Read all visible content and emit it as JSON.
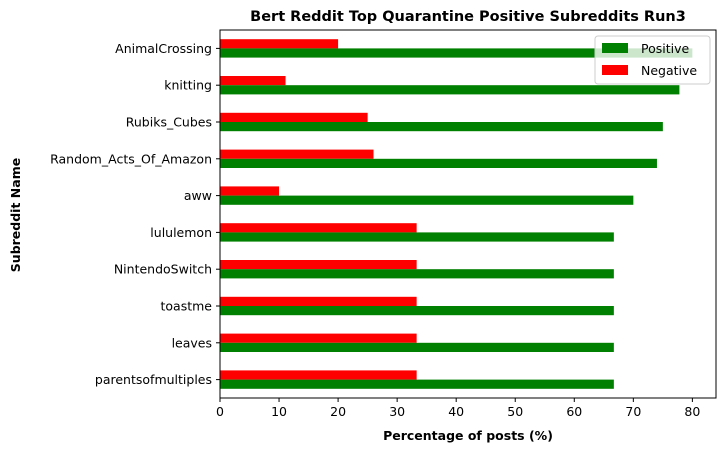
{
  "chart_data": {
    "type": "bar",
    "orientation": "horizontal",
    "title": "Bert Reddit Top Quarantine Positive Subreddits Run3",
    "xlabel": "Percentage of posts (%)",
    "ylabel": "Subreddit Name",
    "xlim": [
      0,
      84
    ],
    "xticks": [
      0,
      10,
      20,
      30,
      40,
      50,
      60,
      70,
      80
    ],
    "categories": [
      "AnimalCrossing",
      "knitting",
      "Rubiks_Cubes",
      "Random_Acts_Of_Amazon",
      "aww",
      "lululemon",
      "NintendoSwitch",
      "toastme",
      "leaves",
      "parentsofmultiples"
    ],
    "series": [
      {
        "name": "Positive",
        "color": "#008000",
        "values": [
          80.0,
          77.8,
          75.0,
          74.0,
          70.0,
          66.7,
          66.7,
          66.7,
          66.7,
          66.7
        ]
      },
      {
        "name": "Negative",
        "color": "#ff0000",
        "values": [
          20.0,
          11.1,
          25.0,
          26.0,
          10.0,
          33.3,
          33.3,
          33.3,
          33.3,
          33.3
        ]
      }
    ],
    "legend_position": "top-right",
    "grid": false
  }
}
